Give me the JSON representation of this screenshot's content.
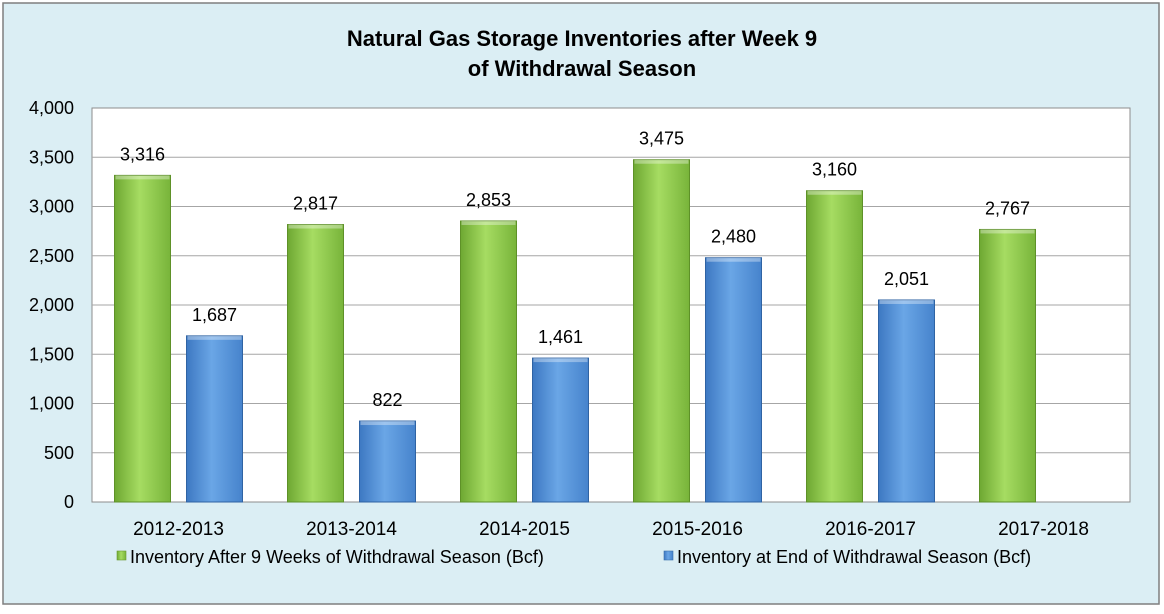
{
  "chart_data": {
    "type": "bar",
    "title": [
      "Natural Gas Storage Inventories after Week 9",
      "of Withdrawal Season"
    ],
    "categories": [
      "2012-2013",
      "2013-2014",
      "2014-2015",
      "2015-2016",
      "2016-2017",
      "2017-2018"
    ],
    "series": [
      {
        "name": "Inventory After 9 Weeks of Withdrawal Season (Bcf)",
        "values": [
          3316,
          2817,
          2853,
          3475,
          3160,
          2767
        ],
        "labels": [
          "3,316",
          "2,817",
          "2,853",
          "3,475",
          "3,160",
          "2,767"
        ],
        "color": "#92d050"
      },
      {
        "name": "Inventory at End of Withdrawal Season (Bcf)",
        "values": [
          1687,
          822,
          1461,
          2480,
          2051,
          null
        ],
        "labels": [
          "1,687",
          "822",
          "1,461",
          "2,480",
          "2,051",
          ""
        ],
        "color": "#5b9bd5"
      }
    ],
    "ylim": [
      0,
      4000
    ],
    "yticks": [
      0,
      500,
      1000,
      1500,
      2000,
      2500,
      3000,
      3500,
      4000
    ],
    "ytick_labels": [
      "0",
      "500",
      "1,000",
      "1,500",
      "2,000",
      "2,500",
      "3,000",
      "3,500",
      "4,000"
    ],
    "grid": true,
    "legend_position": "bottom",
    "colors": {
      "background": "#dbeef4",
      "plot_area": "#ffffff",
      "gridline": "#a6a6a6"
    }
  }
}
